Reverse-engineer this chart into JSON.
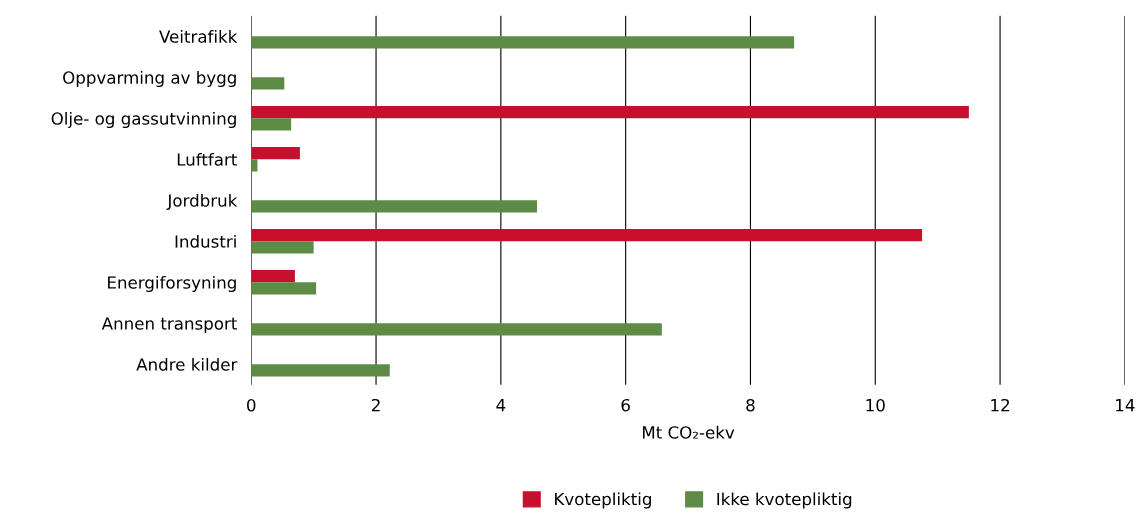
{
  "chart_data": {
    "type": "bar",
    "orientation": "horizontal",
    "categories": [
      "Veitrafikk",
      "Oppvarming av bygg",
      "Olje- og gassutvinning",
      "Luftfart",
      "Jordbruk",
      "Industri",
      "Energiforsyning",
      "Annen transport",
      "Andre kilder"
    ],
    "series": [
      {
        "name": "Kvotepliktig",
        "color": "#c8102e",
        "values": [
          null,
          null,
          11.5,
          0.78,
          null,
          10.75,
          0.7,
          null,
          null
        ]
      },
      {
        "name": "Ikke kvotepliktig",
        "color": "#5e8c47",
        "values": [
          8.7,
          0.53,
          0.64,
          0.1,
          4.58,
          1.0,
          1.04,
          6.58,
          2.22
        ]
      }
    ],
    "xlabel": "Mt CO₂-ekv",
    "xlim": [
      0,
      14
    ],
    "xticks": [
      0,
      2,
      4,
      6,
      8,
      10,
      12,
      14
    ],
    "grid": "x",
    "legend": "bottom"
  }
}
